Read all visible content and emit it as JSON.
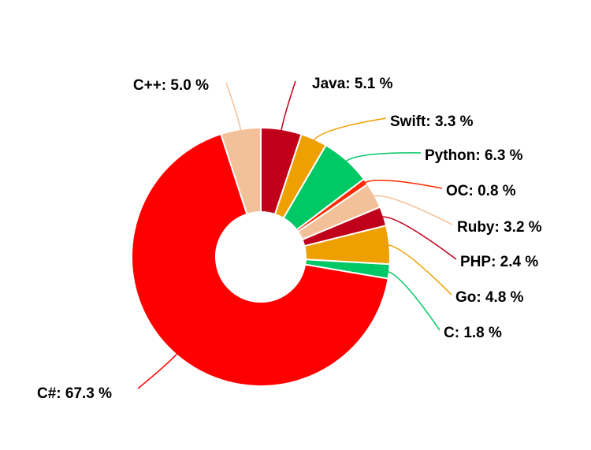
{
  "chart_data": {
    "type": "pie",
    "donut": true,
    "title": "",
    "legend": "none",
    "slices": [
      {
        "label": "Java",
        "value": 5.1,
        "color": "#c0001a",
        "display": "Java: 5.1 %"
      },
      {
        "label": "Swift",
        "value": 3.3,
        "color": "#eea000",
        "display": "Swift: 3.3 %"
      },
      {
        "label": "Python",
        "value": 6.3,
        "color": "#00c864",
        "display": "Python: 6.3 %"
      },
      {
        "label": "OC",
        "value": 0.8,
        "color": "#ff2a00",
        "display": "OC: 0.8 %"
      },
      {
        "label": "Ruby",
        "value": 3.2,
        "color": "#f3c199",
        "display": "Ruby: 3.2 %"
      },
      {
        "label": "PHP",
        "value": 2.4,
        "color": "#c0001a",
        "display": "PHP: 2.4 %"
      },
      {
        "label": "Go",
        "value": 4.8,
        "color": "#eea000",
        "display": "Go: 4.8 %"
      },
      {
        "label": "C",
        "value": 1.8,
        "color": "#00c864",
        "display": "C: 1.8 %"
      },
      {
        "label": "C#",
        "value": 67.3,
        "color": "#ff0000",
        "display": "C#: 67.3 %"
      },
      {
        "label": "C++",
        "value": 5.0,
        "color": "#f3c199",
        "display": "C++: 5.0 %"
      }
    ]
  }
}
